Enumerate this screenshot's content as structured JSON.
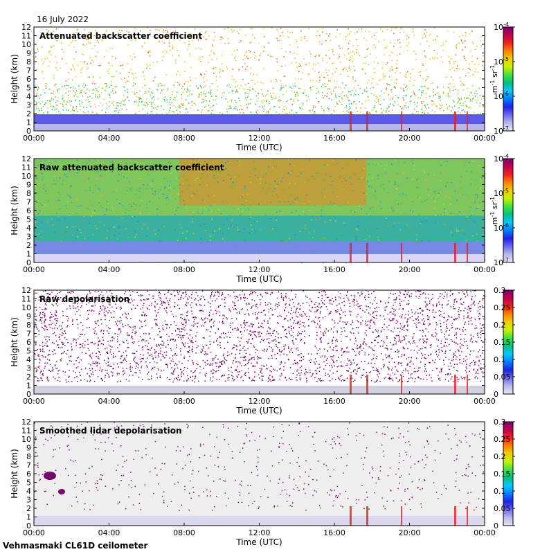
{
  "date": "16 July 2022",
  "footer": "Vehmasmaki CL61D ceilometer",
  "chart_data": [
    {
      "type": "heatmap",
      "title": "Attenuated backscatter coefficient",
      "xlabel": "Time (UTC)",
      "ylabel": "Height (km)",
      "x_ticks": [
        "00:00",
        "04:00",
        "08:00",
        "12:00",
        "16:00",
        "20:00",
        "00:00"
      ],
      "y_ticks": [
        "0",
        "1",
        "2",
        "3",
        "4",
        "5",
        "6",
        "7",
        "8",
        "9",
        "10",
        "11",
        "12"
      ],
      "ylim": [
        0,
        12
      ],
      "colorbar": {
        "scale": "log",
        "labels": [
          "10^-7",
          "10^-6",
          "10^-5",
          "10^-4"
        ],
        "unit": "m^-1 sr^-1"
      }
    },
    {
      "type": "heatmap",
      "title": "Raw attenuated backscatter coefficient",
      "xlabel": "Time (UTC)",
      "ylabel": "Height (km)",
      "x_ticks": [
        "00:00",
        "04:00",
        "08:00",
        "12:00",
        "16:00",
        "20:00",
        "00:00"
      ],
      "y_ticks": [
        "0",
        "1",
        "2",
        "3",
        "4",
        "5",
        "6",
        "7",
        "8",
        "9",
        "10",
        "11",
        "12"
      ],
      "ylim": [
        0,
        12
      ],
      "colorbar": {
        "scale": "log",
        "labels": [
          "10^-7",
          "10^-6",
          "10^-5",
          "10^-4"
        ],
        "unit": "m^-1 sr^-1"
      }
    },
    {
      "type": "heatmap",
      "title": "Raw depolarisation",
      "xlabel": "Time (UTC)",
      "ylabel": "Height (km)",
      "x_ticks": [
        "00:00",
        "04:00",
        "08:00",
        "12:00",
        "16:00",
        "20:00",
        "00:00"
      ],
      "y_ticks": [
        "0",
        "1",
        "2",
        "3",
        "4",
        "5",
        "6",
        "7",
        "8",
        "9",
        "10",
        "11",
        "12"
      ],
      "ylim": [
        0,
        12
      ],
      "colorbar": {
        "scale": "linear",
        "labels": [
          "0",
          "0.05",
          "0.1",
          "0.15",
          "0.2",
          "0.25",
          "0.3"
        ],
        "unit": ""
      }
    },
    {
      "type": "heatmap",
      "title": "Smoothed lidar depolarisation",
      "xlabel": "Time (UTC)",
      "ylabel": "Height (km)",
      "x_ticks": [
        "00:00",
        "04:00",
        "08:00",
        "12:00",
        "16:00",
        "20:00",
        "00:00"
      ],
      "y_ticks": [
        "0",
        "1",
        "2",
        "3",
        "4",
        "5",
        "6",
        "7",
        "8",
        "9",
        "10",
        "11",
        "12"
      ],
      "ylim": [
        0,
        12
      ],
      "colorbar": {
        "scale": "linear",
        "labels": [
          "0",
          "0.05",
          "0.1",
          "0.15",
          "0.2",
          "0.25",
          "0.3"
        ],
        "unit": ""
      }
    }
  ]
}
